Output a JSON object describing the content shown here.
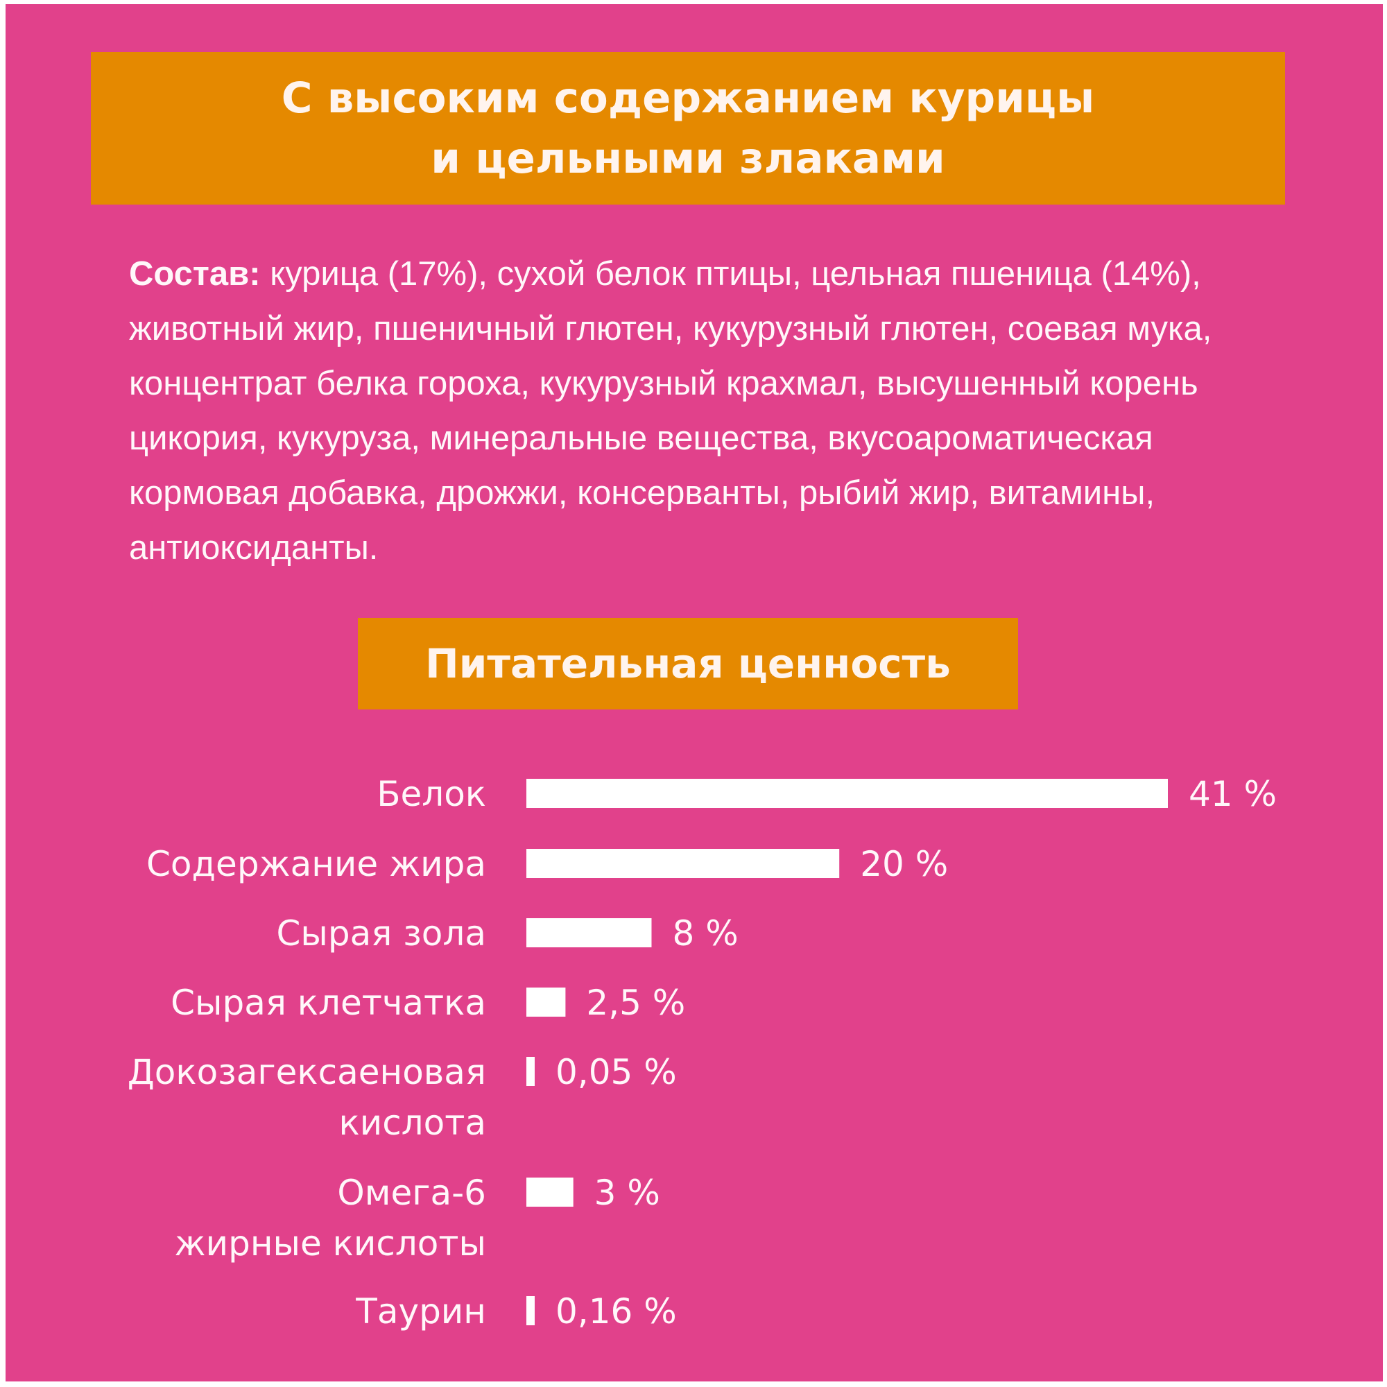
{
  "colors": {
    "background": "#e1418b",
    "banner": "#e58900",
    "text": "#fff7fa",
    "bar": "#ffffff"
  },
  "header": {
    "line1": "С высоким содержанием курицы",
    "line2": "и цельными злаками"
  },
  "composition": {
    "label": "Состав:",
    "text": " курица (17%), сухой белок птицы, цельная пшеница (14%), животный жир, пшеничный глютен, кукурузный глютен, соевая мука, концентрат белка гороха, кукурузный крахмал, высушенный корень цикория, кукуруза, минеральные вещества, вкусоароматическая кормовая добавка, дрожжи, консерванты, рыбий жир, витамины, антиоксиданты."
  },
  "nutrition_title": "Питательная ценность",
  "chart_data": {
    "type": "bar",
    "orientation": "horizontal",
    "title": "Питательная ценность",
    "categories": [
      [
        "Белок"
      ],
      [
        "Содержание жира"
      ],
      [
        "Сырая зола"
      ],
      [
        "Сырая клетчатка"
      ],
      [
        "Докозагексаеновая",
        "кислота"
      ],
      [
        "Омега-6",
        "жирные кислоты"
      ],
      [
        "Таурин"
      ]
    ],
    "values": [
      41,
      20,
      8,
      2.5,
      0.05,
      3,
      0.16
    ],
    "value_labels": [
      "41 %",
      "20 %",
      "8 %",
      "2,5 %",
      "0,05 %",
      "3 %",
      "0,16 %"
    ],
    "unit": "%",
    "xlim": [
      0,
      41
    ],
    "grid": false,
    "legend": false
  }
}
